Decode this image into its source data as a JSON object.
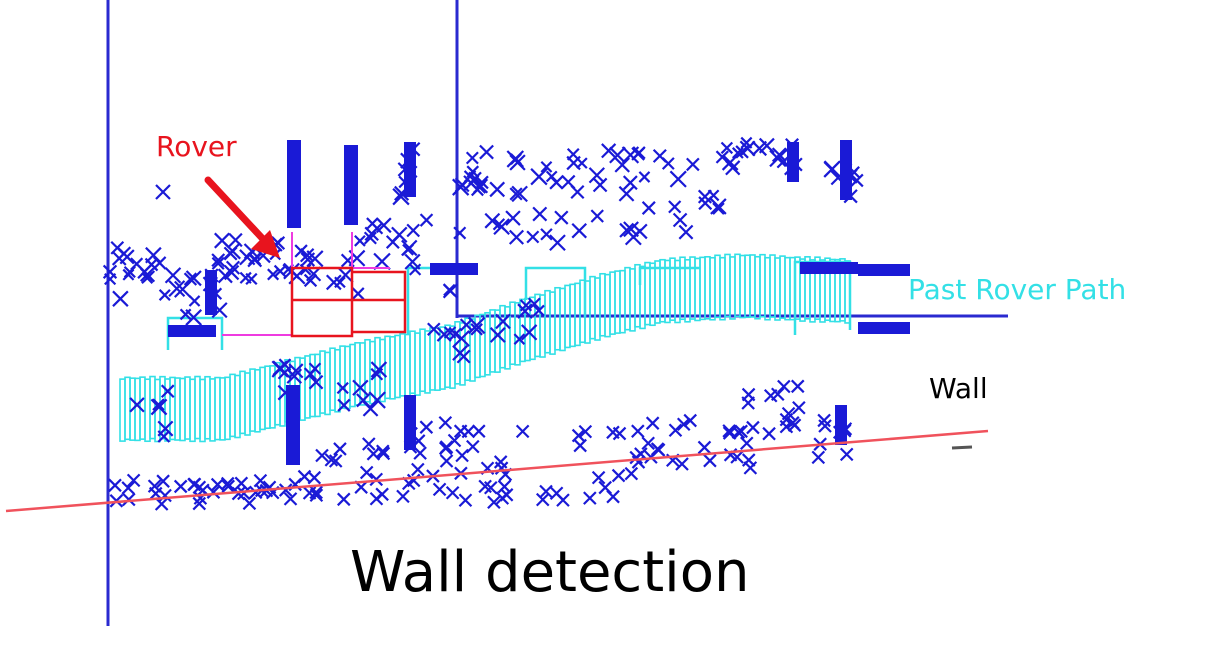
{
  "labels": {
    "rover": "Rover",
    "path": "Past Rover Path",
    "wall": "Wall",
    "caption": "Wall detection"
  },
  "colors": {
    "points": "#1a1ad6",
    "axis": "#2a2ad0",
    "path": "#33e0e6",
    "rover_marker": "#e8141e",
    "pink_boxes": "#ee3be0",
    "wall_line": "#f0525c",
    "caption": "#000000",
    "wall_label": "#000000"
  },
  "icons": {
    "rover_pointer": "arrow-icon",
    "detected_point": "x-mark-icon"
  }
}
